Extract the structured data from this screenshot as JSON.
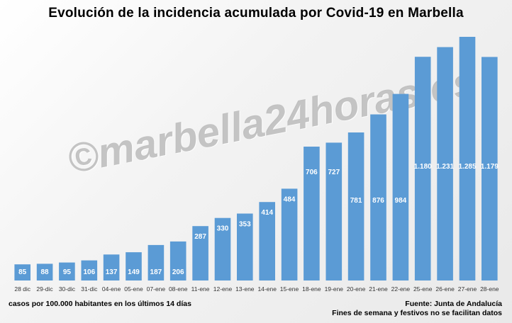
{
  "watermark": "©marbella24horas.es",
  "footer": {
    "units_note": "casos por 100.000 habitantes en los últimos 14 días",
    "source": "Fuente: Junta de Andalucía",
    "note": "Fines de semana y festivos no se facilitan datos"
  },
  "chart_data": {
    "type": "bar",
    "title": "Evolución de la incidencia acumulada por Covid-19 en Marbella",
    "xlabel": "",
    "ylabel": "",
    "categories": [
      "28 dic",
      "29-dic",
      "30-dic",
      "31-dic",
      "04-ene",
      "05-ene",
      "07-ene",
      "08-ene",
      "11-ene",
      "12-ene",
      "13-ene",
      "14-ene",
      "15-ene",
      "18-ene",
      "19-ene",
      "20-ene",
      "21-ene",
      "22-ene",
      "25-ene",
      "26-ene",
      "27-ene",
      "28-ene"
    ],
    "values": [
      85,
      88,
      95,
      106,
      137,
      149,
      187,
      206,
      287,
      330,
      353,
      414,
      484,
      706,
      727,
      781,
      876,
      984,
      1180,
      1231,
      1285,
      1179
    ],
    "value_labels": [
      "85",
      "88",
      "95",
      "106",
      "137",
      "149",
      "187",
      "206",
      "287",
      "330",
      "353",
      "414",
      "484",
      "706",
      "727",
      "781",
      "876",
      "984",
      "1.180",
      "1.231",
      "1.285",
      "1.179"
    ],
    "ylim": [
      0,
      1330
    ],
    "grid": false,
    "legend": "none",
    "bar_color": "#5b9bd5",
    "label_color": "#ffffff"
  }
}
